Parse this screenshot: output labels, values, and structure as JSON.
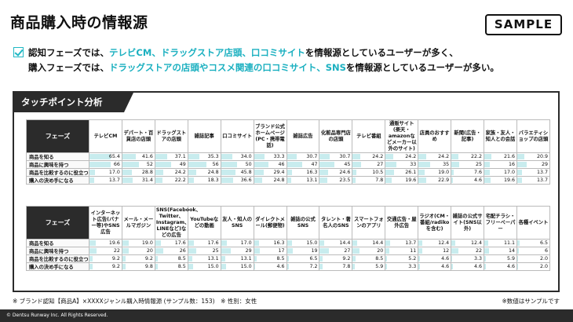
{
  "title": "商品購入時の情報源",
  "sample_label": "SAMPLE",
  "summary": {
    "line1_pre": "認知フェーズでは、",
    "line1_hl": "テレビCM、ドラッグストア店頭、口コミサイト",
    "line1_post": "を情報源としているユーザーが多く、",
    "line2_pre": "購入フェーズでは、",
    "line2_hl": "ドラッグストアの店頭やコスメ関連の口コミサイト、SNS",
    "line2_post": "を情報源としているユーザーが多い。"
  },
  "panel_title": "タッチポイント分析",
  "tables": [
    {
      "phase_label": "フェーズ",
      "columns": [
        "テレビCM",
        "デパート・百貨店の店頭",
        "ドラッグストアの店頭",
        "雑誌記事",
        "口コミサイト",
        "ブランド公式ホームページ(PC・携帯電話)",
        "雑誌広告",
        "化粧品専門店の店頭",
        "テレビ番組",
        "通販サイト(楽天・amazonなどメーカー以外のサイト)",
        "店員のおすすめ",
        "新聞(広告・記事)",
        "家族・友人・知人との会話",
        "バラエティショップの店頭"
      ],
      "rows": [
        {
          "label": "商品を知る",
          "values": [
            "65.4",
            "41.6",
            "37.1",
            "35.3",
            "34.0",
            "33.3",
            "30.7",
            "30.7",
            "24.2",
            "24.2",
            "24.2",
            "22.2",
            "21.6",
            "20.9"
          ]
        },
        {
          "label": "商品に興味を持つ",
          "values": [
            "66",
            "52",
            "49",
            "56",
            "50",
            "46",
            "47",
            "45",
            "27",
            "33",
            "35",
            "25",
            "16",
            "29"
          ]
        },
        {
          "label": "商品を比較するのに役立つ",
          "values": [
            "17.0",
            "28.8",
            "24.2",
            "24.8",
            "45.8",
            "29.4",
            "16.3",
            "24.6",
            "10.5",
            "26.1",
            "19.0",
            "7.6",
            "17.0",
            "13.7"
          ]
        },
        {
          "label": "購入の決め手になる",
          "values": [
            "13.7",
            "31.4",
            "22.2",
            "18.3",
            "36.6",
            "24.8",
            "13.1",
            "23.5",
            "7.8",
            "19.6",
            "22.9",
            "4.6",
            "19.6",
            "13.7"
          ]
        }
      ]
    },
    {
      "phase_label": "フェーズ",
      "columns": [
        "インターネット広告(バナー等)やSNS広告",
        "メール・メールマガジン",
        "SNS(Facebook、Twitter、Instagram、LINEなど)などの広告",
        "YouTubeなどの動画",
        "友人・知人のSNS",
        "ダイレクトメール(郵便物)",
        "雑誌の公式SNS",
        "タレント・著名人のSNS",
        "スマートフォンのアプリ",
        "交通広告・屋外広告",
        "ラジオ(CM・番組/radikoを含む)",
        "雑誌の公式サイト(SNS以外)",
        "宅配チラシ・フリーペーパー",
        "各種イベント"
      ],
      "rows": [
        {
          "label": "商品を知る",
          "values": [
            "19.6",
            "19.0",
            "17.6",
            "17.6",
            "17.0",
            "16.3",
            "15.0",
            "14.4",
            "14.4",
            "13.7",
            "12.4",
            "12.4",
            "11.1",
            "6.5"
          ]
        },
        {
          "label": "商品に興味を持つ",
          "values": [
            "22",
            "20",
            "26",
            "25",
            "29",
            "17",
            "19",
            "27",
            "20",
            "11",
            "12",
            "22",
            "14",
            "6"
          ]
        },
        {
          "label": "商品を比較するのに役立つ",
          "values": [
            "9.2",
            "9.2",
            "8.5",
            "13.1",
            "13.1",
            "8.5",
            "6.5",
            "9.2",
            "8.5",
            "5.2",
            "4.6",
            "3.3",
            "5.9",
            "2.0"
          ]
        },
        {
          "label": "購入の決め手になる",
          "values": [
            "9.2",
            "9.8",
            "8.5",
            "15.0",
            "15.0",
            "4.6",
            "7.2",
            "7.8",
            "5.9",
            "3.3",
            "4.6",
            "4.6",
            "4.6",
            "2.0"
          ]
        }
      ]
    }
  ],
  "footnote_left": "※ ブランド認知【商品A】×XXXXジャンル購入時情報源 (サンプル数：153)　※ 性別：女性",
  "footnote_right": "※数値はサンプルです",
  "copyright": "© Dentsu Runway Inc. All Rights Reserved.",
  "colors": {
    "accent": "#1bb0c0",
    "bar": "#c8ecee",
    "dark": "#2b2b2b"
  }
}
